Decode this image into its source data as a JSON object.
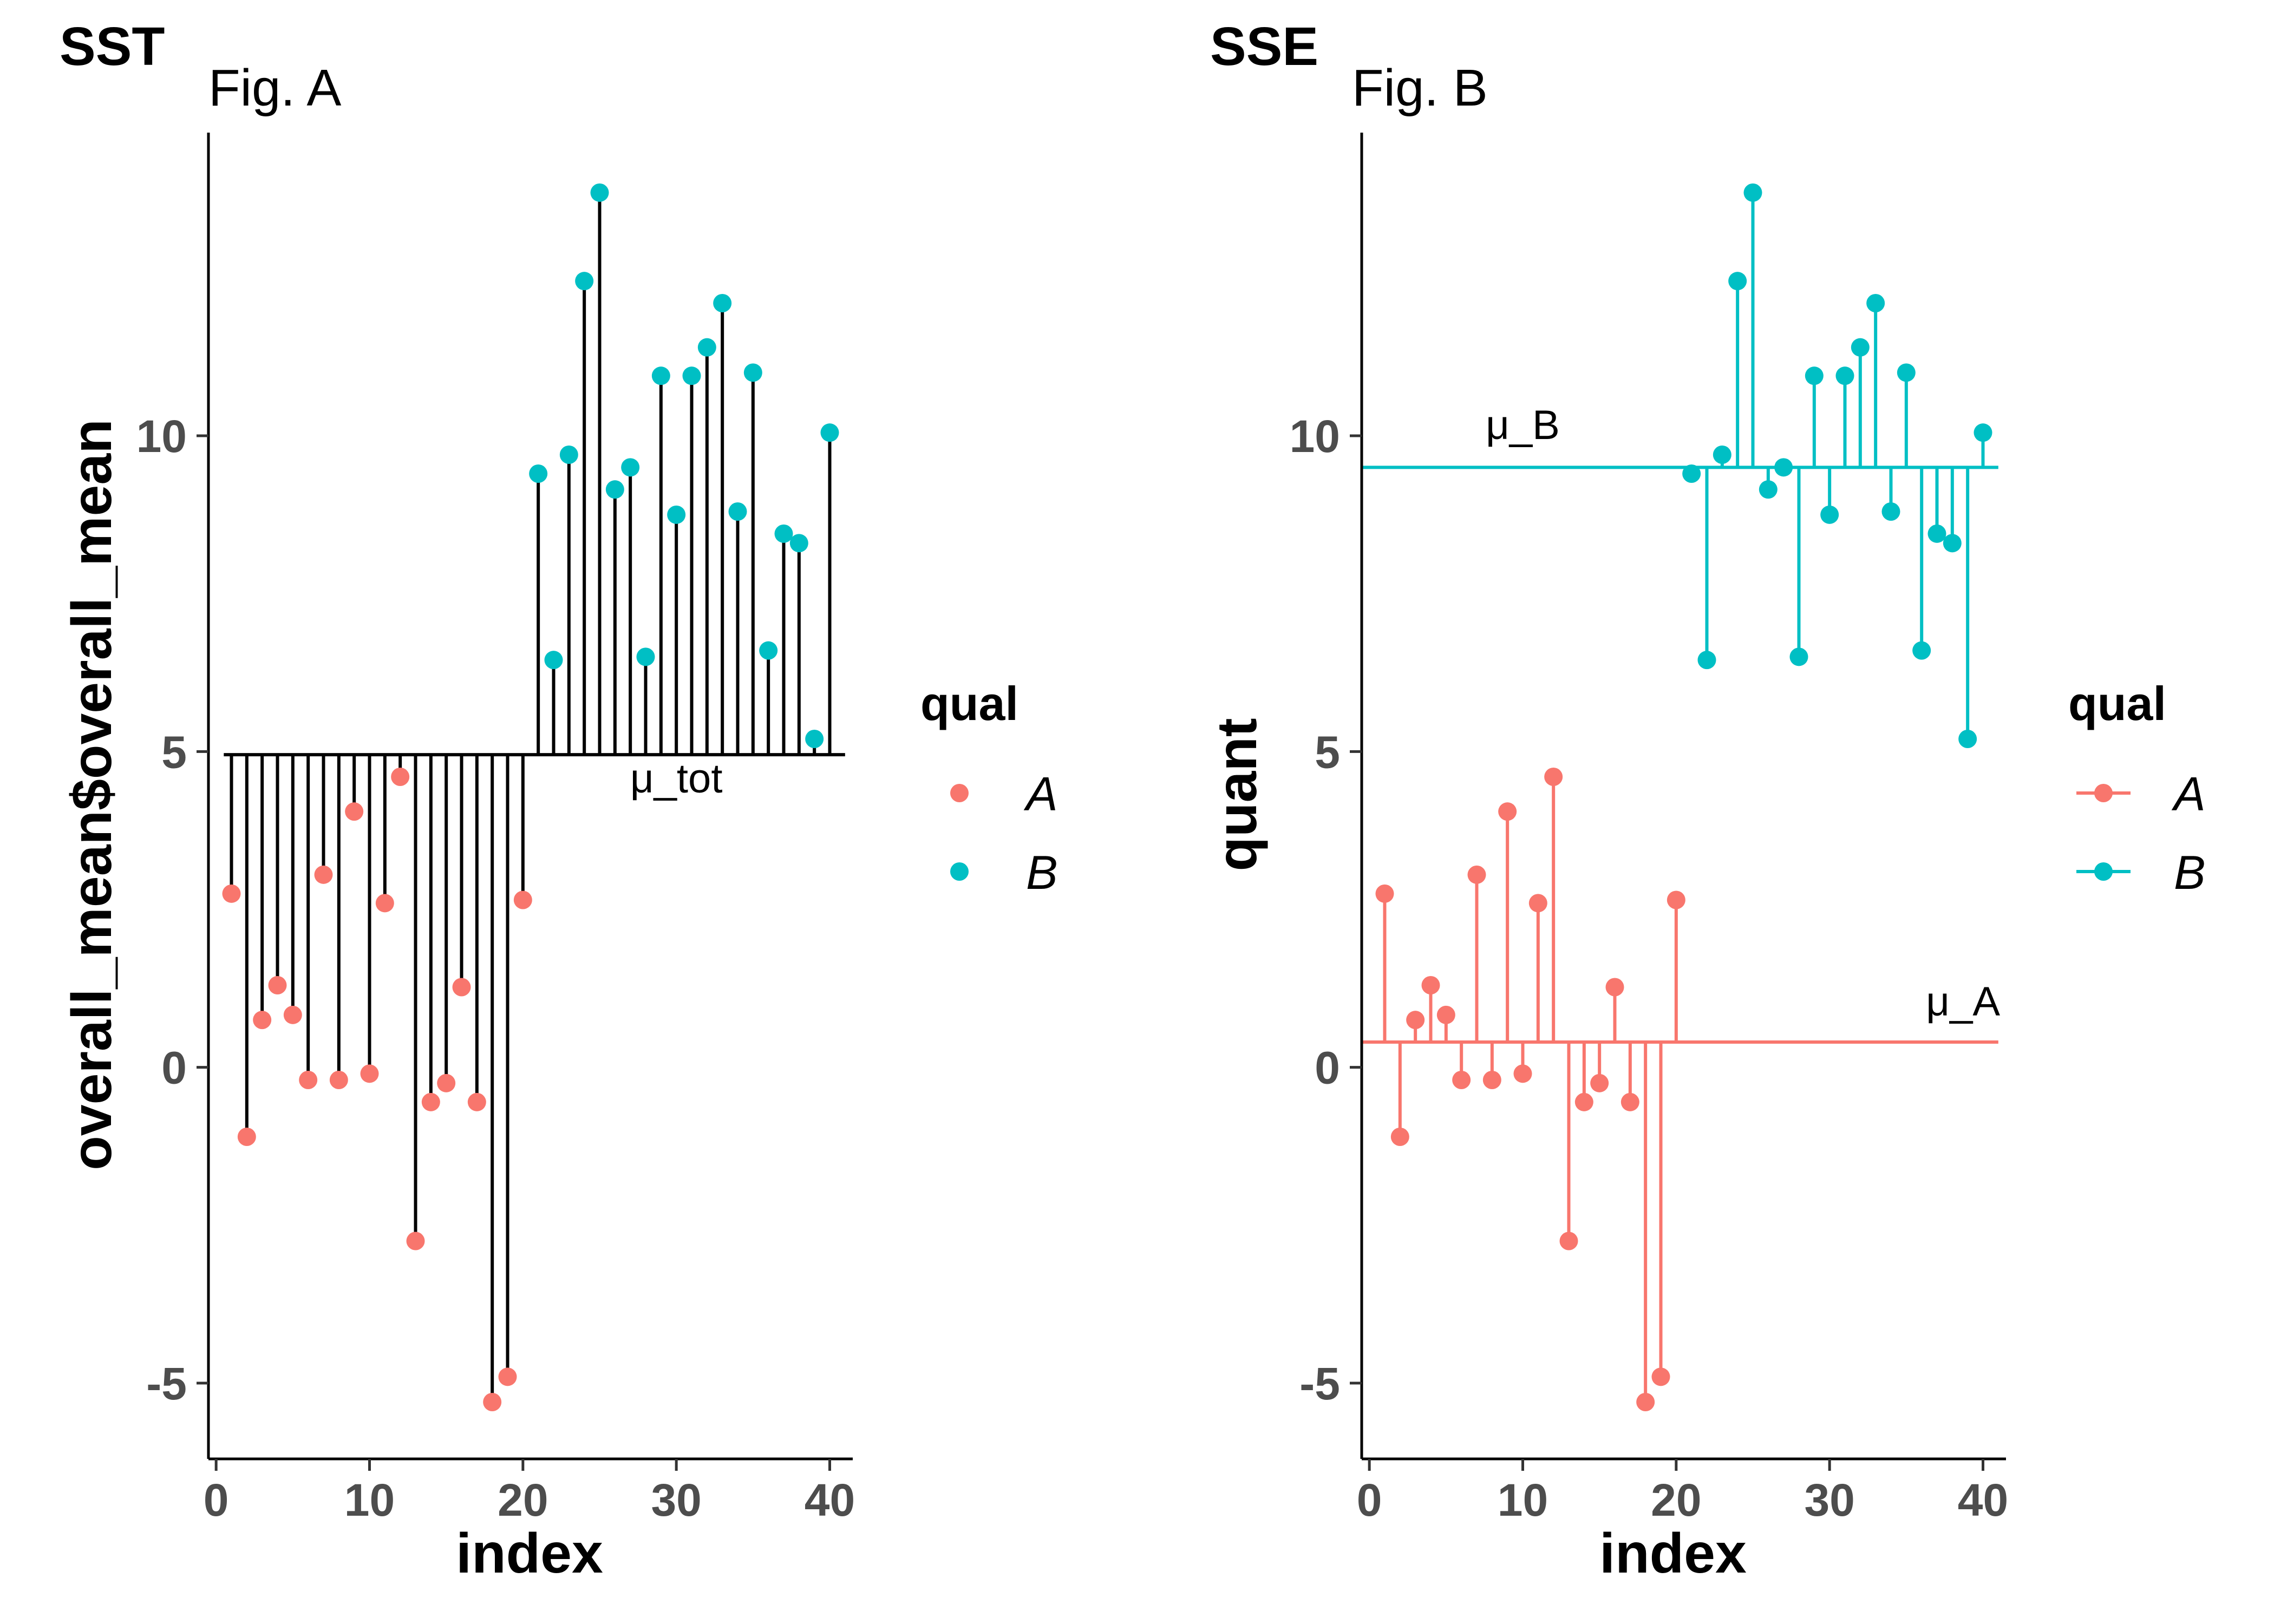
{
  "chart_data": [
    {
      "type": "scatter",
      "tag": "SST",
      "title": "Fig. A",
      "xlabel": "index",
      "ylabel": "overall_mean$overall_mean",
      "xlim": [
        -0.5,
        41.5
      ],
      "ylim": [
        -6.2,
        14.8
      ],
      "x_ticks": [
        0,
        10,
        20,
        30,
        40
      ],
      "y_ticks": [
        -5,
        0,
        5,
        10
      ],
      "grid": false,
      "segment_color": "#000000",
      "reference_lines": [
        {
          "label": "μ_tot",
          "y": 4.95,
          "x_from": 0.5,
          "x_to": 41,
          "color": "#000000",
          "label_x": 30,
          "label_y": 4.35
        }
      ],
      "legend": {
        "title": "qual",
        "position": "right",
        "keys": "point"
      }
    },
    {
      "type": "scatter",
      "tag": "SSE",
      "title": "Fig. B",
      "xlabel": "index",
      "ylabel": "quant",
      "xlim": [
        -0.5,
        41.5
      ],
      "ylim": [
        -6.2,
        14.8
      ],
      "x_ticks": [
        0,
        10,
        20,
        30,
        40
      ],
      "y_ticks": [
        -5,
        0,
        5,
        10
      ],
      "grid": false,
      "segment_color": "by-group",
      "reference_lines": [
        {
          "label": "μ_A",
          "y": 0.4,
          "x_from": -0.5,
          "x_to": 41,
          "color": "#F8766D",
          "label_x": 38.7,
          "label_y": 0.82
        },
        {
          "label": "μ_B",
          "y": 9.5,
          "x_from": -0.5,
          "x_to": 41,
          "color": "#00BFC4",
          "label_x": 10,
          "label_y": 9.95
        }
      ],
      "legend": {
        "title": "qual",
        "position": "right",
        "keys": "line-point"
      }
    }
  ],
  "series": [
    {
      "name": "A",
      "color": "#F8766D",
      "mean": 0.4,
      "x": [
        1,
        2,
        3,
        4,
        5,
        6,
        7,
        8,
        9,
        10,
        11,
        12,
        13,
        14,
        15,
        16,
        17,
        18,
        19,
        20
      ],
      "y": [
        2.75,
        -1.1,
        0.75,
        1.3,
        0.83,
        -0.2,
        3.05,
        -0.2,
        4.05,
        -0.1,
        2.6,
        4.6,
        -2.75,
        -0.55,
        -0.25,
        1.27,
        -0.55,
        -5.3,
        -4.9,
        2.65
      ]
    },
    {
      "name": "B",
      "color": "#00BFC4",
      "mean": 9.5,
      "x": [
        21,
        22,
        23,
        24,
        25,
        26,
        27,
        28,
        29,
        30,
        31,
        32,
        33,
        34,
        35,
        36,
        37,
        38,
        39,
        40
      ],
      "y": [
        9.4,
        6.45,
        9.7,
        12.45,
        13.85,
        9.15,
        9.5,
        6.5,
        10.95,
        8.75,
        10.95,
        11.4,
        12.1,
        8.8,
        11.0,
        6.6,
        8.45,
        8.3,
        5.2,
        10.05
      ]
    }
  ]
}
